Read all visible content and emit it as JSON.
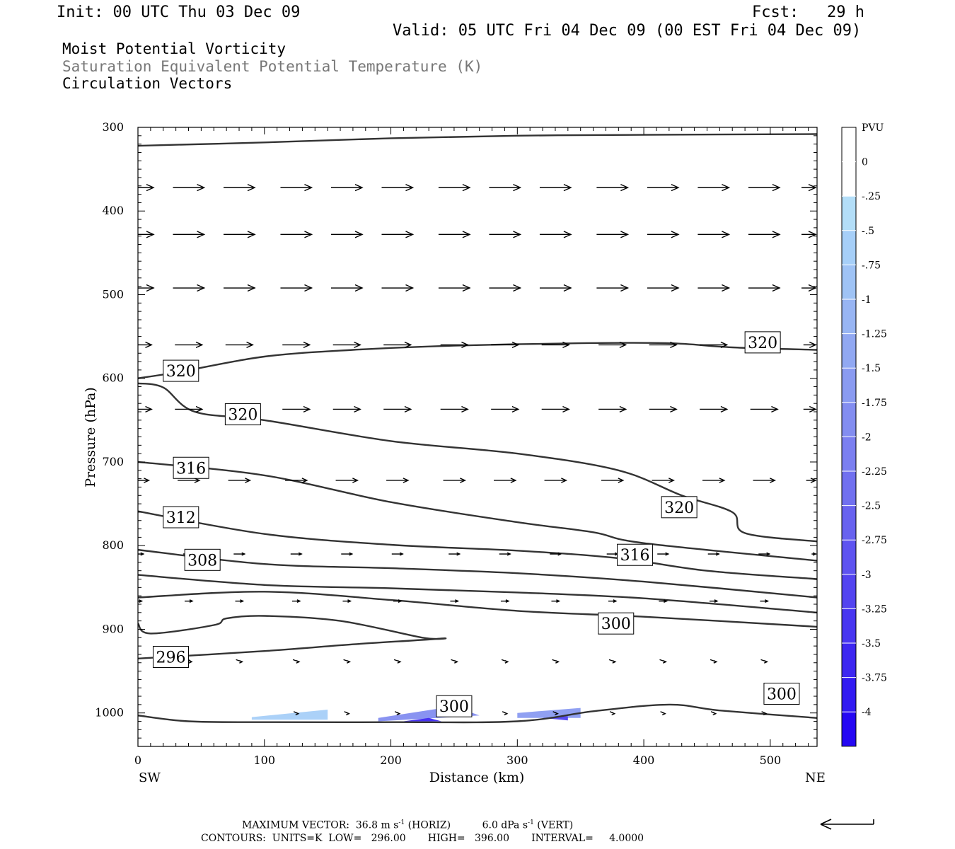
{
  "header": {
    "init": "Init: 00 UTC Thu 03 Dec 09",
    "fcst": "Fcst:   29 h",
    "valid": "Valid: 05 UTC Fri 04 Dec 09 (00 EST Fri 04 Dec 09)",
    "field1": "Moist Potential Vorticity",
    "field2": "Saturation Equivalent Potential Temperature (K)",
    "field3": "Circulation Vectors"
  },
  "chart_data": {
    "type": "contour",
    "xlabel": "Distance (km)",
    "ylabel": "Pressure (hPa)",
    "xlim": [
      0,
      537
    ],
    "ylim": [
      1040,
      300
    ],
    "x_ticks": [
      0,
      100,
      200,
      300,
      400,
      500
    ],
    "y_ticks": [
      300,
      400,
      500,
      600,
      700,
      800,
      900,
      1000
    ],
    "x_endpoints": {
      "left": "SW",
      "right": "NE"
    },
    "contour_units": "K",
    "contour_labels": [
      {
        "value": "320",
        "x": 494,
        "p": 557
      },
      {
        "value": "320",
        "x": 34,
        "p": 591
      },
      {
        "value": "320",
        "x": 83,
        "p": 643
      },
      {
        "value": "316",
        "x": 42,
        "p": 707
      },
      {
        "value": "320",
        "x": 428,
        "p": 754
      },
      {
        "value": "312",
        "x": 34,
        "p": 766
      },
      {
        "value": "316",
        "x": 393,
        "p": 811
      },
      {
        "value": "308",
        "x": 51,
        "p": 817
      },
      {
        "value": "300",
        "x": 378,
        "p": 893
      },
      {
        "value": "296",
        "x": 26,
        "p": 933
      },
      {
        "value": "300",
        "x": 250,
        "p": 992
      },
      {
        "value": "300",
        "x": 509,
        "p": 977
      }
    ],
    "contours": [
      {
        "level": 320,
        "points": [
          [
            0,
            322
          ],
          [
            100,
            318
          ],
          [
            200,
            313
          ],
          [
            300,
            310
          ],
          [
            400,
            309
          ],
          [
            537,
            308
          ]
        ]
      },
      {
        "level": 320,
        "points": [
          [
            0,
            600
          ],
          [
            34,
            592
          ],
          [
            100,
            574
          ],
          [
            170,
            566
          ],
          [
            250,
            561
          ],
          [
            350,
            558
          ],
          [
            420,
            558
          ],
          [
            470,
            563
          ],
          [
            537,
            566
          ]
        ]
      },
      {
        "level": 320,
        "points": [
          [
            0,
            606
          ],
          [
            20,
            611
          ],
          [
            45,
            640
          ],
          [
            100,
            650
          ],
          [
            200,
            675
          ],
          [
            300,
            690
          ],
          [
            380,
            710
          ],
          [
            430,
            740
          ],
          [
            470,
            760
          ],
          [
            480,
            785
          ],
          [
            537,
            795
          ]
        ]
      },
      {
        "level": 316,
        "points": [
          [
            0,
            700
          ],
          [
            100,
            716
          ],
          [
            200,
            748
          ],
          [
            300,
            772
          ],
          [
            360,
            784
          ],
          [
            400,
            797
          ],
          [
            537,
            818
          ]
        ]
      },
      {
        "level": 312,
        "points": [
          [
            0,
            759
          ],
          [
            100,
            786
          ],
          [
            200,
            799
          ],
          [
            300,
            806
          ],
          [
            380,
            815
          ],
          [
            450,
            830
          ],
          [
            537,
            840
          ]
        ]
      },
      {
        "level": 308,
        "points": [
          [
            0,
            805
          ],
          [
            100,
            822
          ],
          [
            200,
            827
          ],
          [
            300,
            833
          ],
          [
            400,
            843
          ],
          [
            537,
            862
          ]
        ]
      },
      {
        "level": 304,
        "points": [
          [
            0,
            835
          ],
          [
            100,
            847
          ],
          [
            200,
            851
          ],
          [
            300,
            856
          ],
          [
            400,
            863
          ],
          [
            537,
            880
          ]
        ]
      },
      {
        "level": 300,
        "points": [
          [
            0,
            862
          ],
          [
            100,
            855
          ],
          [
            200,
            865
          ],
          [
            300,
            878
          ],
          [
            400,
            885
          ],
          [
            537,
            897
          ]
        ]
      },
      {
        "level": 296,
        "points": [
          [
            0,
            893
          ],
          [
            10,
            905
          ],
          [
            60,
            895
          ],
          [
            70,
            887
          ],
          [
            100,
            884
          ],
          [
            160,
            890
          ],
          [
            225,
            910
          ],
          [
            240,
            911
          ],
          [
            170,
            918
          ],
          [
            100,
            926
          ],
          [
            0,
            935
          ]
        ]
      },
      {
        "level": 300,
        "points": [
          [
            0,
            1003
          ],
          [
            40,
            1010
          ],
          [
            100,
            1011
          ],
          [
            200,
            1011
          ],
          [
            300,
            1010
          ],
          [
            360,
            998
          ],
          [
            420,
            990
          ],
          [
            460,
            997
          ],
          [
            537,
            1006
          ]
        ]
      }
    ],
    "pv_shading": [
      {
        "level": -0.5,
        "region": [
          [
            90,
            1005
          ],
          [
            150,
            996
          ],
          [
            150,
            1008
          ],
          [
            90,
            1008
          ]
        ]
      },
      {
        "level": -1.75,
        "region": [
          [
            190,
            1006
          ],
          [
            250,
            992
          ],
          [
            270,
            1003
          ],
          [
            190,
            1010
          ]
        ]
      },
      {
        "level": -3.5,
        "region": [
          [
            210,
            1010
          ],
          [
            230,
            1006
          ],
          [
            240,
            1010
          ]
        ]
      },
      {
        "level": -1.5,
        "region": [
          [
            300,
            1000
          ],
          [
            350,
            994
          ],
          [
            350,
            1006
          ],
          [
            300,
            1006
          ]
        ]
      },
      {
        "level": -3.0,
        "region": [
          [
            320,
            1006
          ],
          [
            340,
            1004
          ],
          [
            340,
            1009
          ]
        ]
      }
    ],
    "vectors_note": "Circulation vectors shown as arrows; magnitudes relative to reference vector",
    "colorbar": {
      "title": "PVU",
      "levels": [
        "0",
        "-.25",
        "-.5",
        "-.75",
        "-1",
        "-1.25",
        "-1.5",
        "-1.75",
        "-2",
        "-2.25",
        "-2.5",
        "-2.75",
        "-3",
        "-3.25",
        "-3.5",
        "-3.75",
        "-4"
      ],
      "colors": [
        "#ffffff",
        "#ffffff",
        "#b3def8",
        "#a6cff8",
        "#9fc3f5",
        "#98b5f3",
        "#91a8f2",
        "#8a9bf1",
        "#838df0",
        "#7b7ff0",
        "#7170ef",
        "#6862ef",
        "#5e53f0",
        "#5344f0",
        "#4836f1",
        "#3d27f1",
        "#321af2",
        "#2507f3"
      ]
    }
  },
  "footer": {
    "line1_a": "MAXIMUM VECTOR:  36.8 m s",
    "line1_b": "(HORIZ)",
    "line1_c": "6.0 dPa s",
    "line1_d": "(VERT)",
    "sup": "-1",
    "line2": "CONTOURS:  UNITS=K  LOW=   296.00       HIGH=   396.00       INTERVAL=     4.0000"
  }
}
